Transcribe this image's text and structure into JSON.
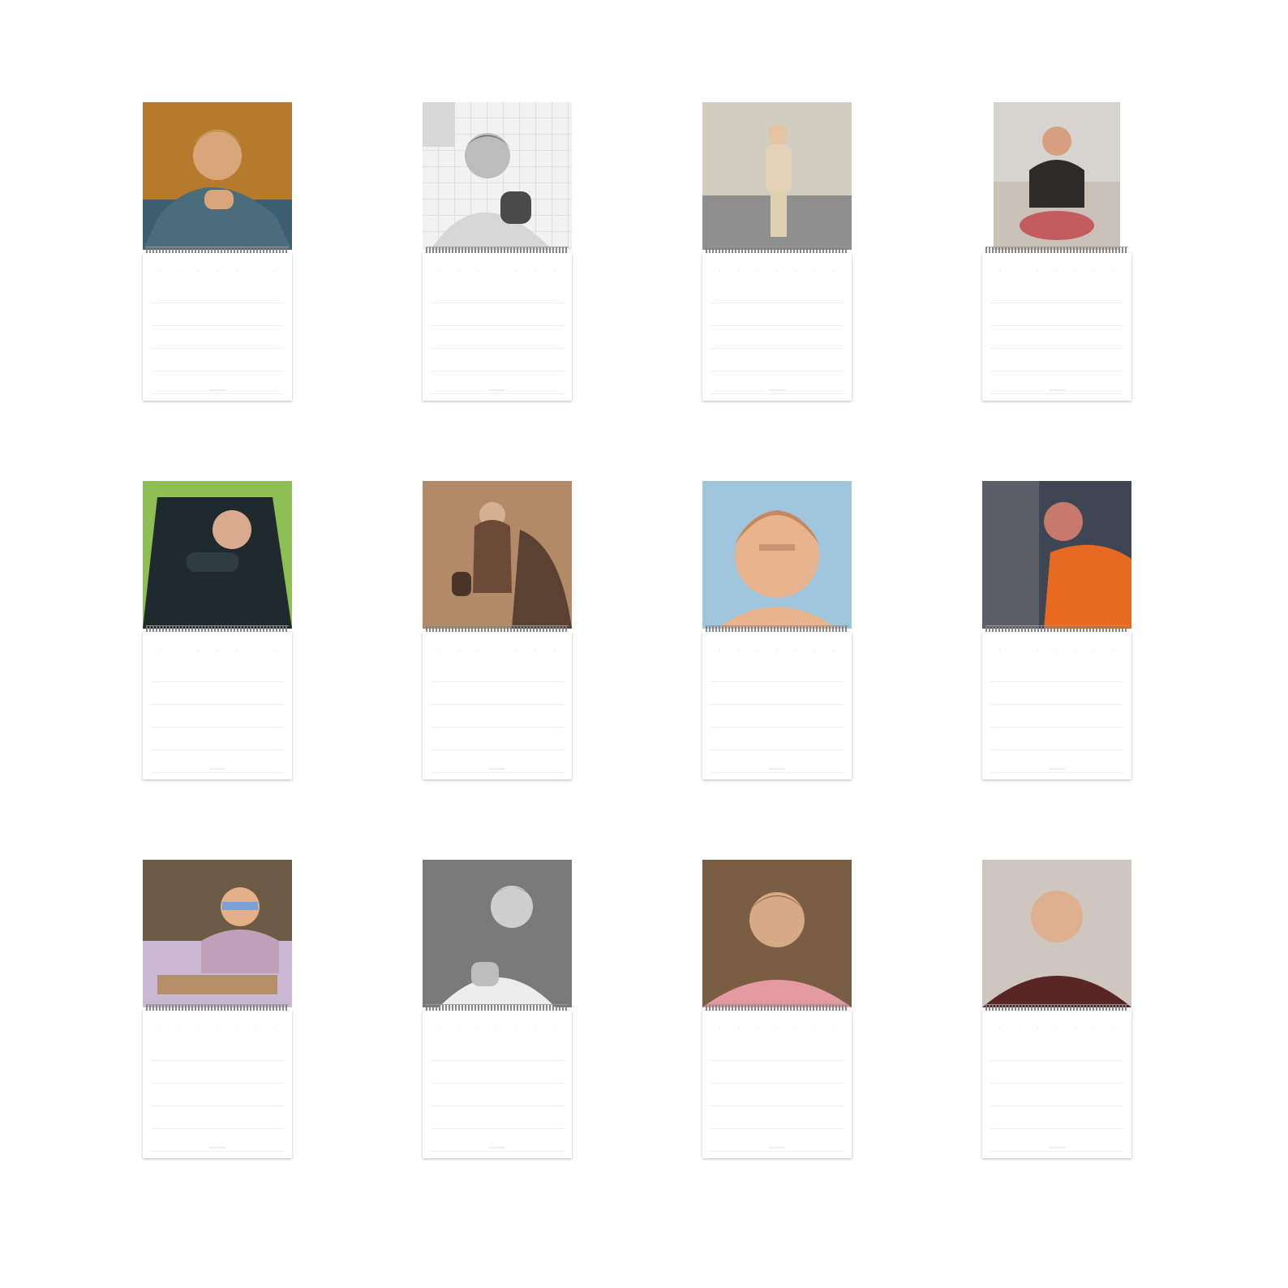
{
  "calendar_pages": [
    {
      "id": "january",
      "photo_palette": [
        "#b67a2c",
        "#3b5f71",
        "#d9a67b"
      ]
    },
    {
      "id": "february",
      "photo_palette": [
        "#d8d8d8",
        "#4a4a4a",
        "#f2f2f2"
      ]
    },
    {
      "id": "march",
      "photo_palette": [
        "#bdb9a8",
        "#e3d3b6",
        "#8f8f8f"
      ]
    },
    {
      "id": "april",
      "photo_palette": [
        "#d7d4d0",
        "#2d2a29",
        "#c35d5d"
      ]
    },
    {
      "id": "may",
      "photo_palette": [
        "#97c45a",
        "#1f2a2f",
        "#d9aa8d"
      ]
    },
    {
      "id": "june",
      "photo_palette": [
        "#b38a67",
        "#5a4131",
        "#d4b293"
      ]
    },
    {
      "id": "july",
      "photo_palette": [
        "#9fc6dd",
        "#c8875b",
        "#e7b48e"
      ]
    },
    {
      "id": "august",
      "photo_palette": [
        "#3d4652",
        "#e86a22",
        "#c77a6b"
      ]
    },
    {
      "id": "september",
      "photo_palette": [
        "#6b5a44",
        "#c9b7d3",
        "#e4b089"
      ]
    },
    {
      "id": "october",
      "photo_palette": [
        "#7a7a7a",
        "#ededed",
        "#2d2d2d"
      ]
    },
    {
      "id": "november",
      "photo_palette": [
        "#7a5e43",
        "#e39aa0",
        "#d6aa84"
      ]
    },
    {
      "id": "december",
      "photo_palette": [
        "#cfc7bf",
        "#5a2525",
        "#dfb08f"
      ]
    }
  ]
}
